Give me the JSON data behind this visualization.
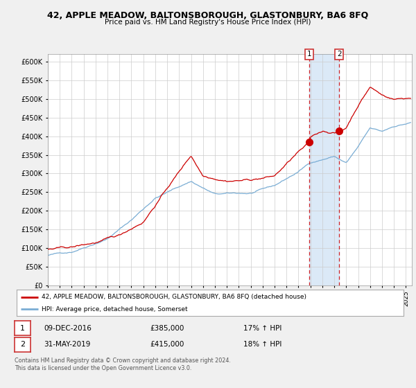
{
  "title": "42, APPLE MEADOW, BALTONSBOROUGH, GLASTONBURY, BA6 8FQ",
  "subtitle": "Price paid vs. HM Land Registry's House Price Index (HPI)",
  "legend_line1": "42, APPLE MEADOW, BALTONSBOROUGH, GLASTONBURY, BA6 8FQ (detached house)",
  "legend_line2": "HPI: Average price, detached house, Somerset",
  "annotation1_date": "09-DEC-2016",
  "annotation1_price": "£385,000",
  "annotation1_hpi": "17% ↑ HPI",
  "annotation2_date": "31-MAY-2019",
  "annotation2_price": "£415,000",
  "annotation2_hpi": "18% ↑ HPI",
  "footer": "Contains HM Land Registry data © Crown copyright and database right 2024.\nThis data is licensed under the Open Government Licence v3.0.",
  "sale1_year": 2016.92,
  "sale1_value": 385000,
  "sale2_year": 2019.42,
  "sale2_value": 415000,
  "line1_color": "#cc0000",
  "line2_color": "#7aadd4",
  "bg_color": "#f0f0f0",
  "plot_bg": "#ffffff",
  "grid_color": "#cccccc",
  "shade_color": "#cce0f5",
  "ylim": [
    0,
    620000
  ],
  "yticks": [
    0,
    50000,
    100000,
    150000,
    200000,
    250000,
    300000,
    350000,
    400000,
    450000,
    500000,
    550000,
    600000
  ]
}
